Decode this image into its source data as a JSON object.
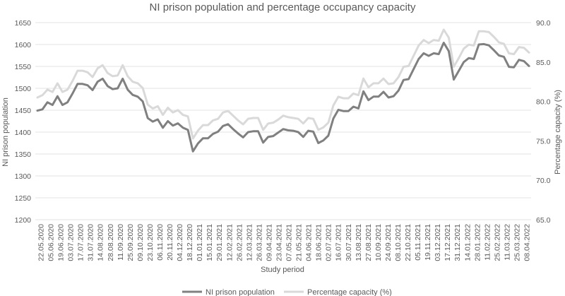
{
  "chart_data": {
    "type": "line",
    "title": "NI prison population and percentage occupancy capacity",
    "xlabel": "Study period",
    "ylabel": "NI prison population",
    "y2label": "Percentage capacity (%)",
    "ylim": [
      1200,
      1650
    ],
    "yticks": [
      "1650",
      "1600",
      "1550",
      "1500",
      "1450",
      "1400",
      "1350",
      "1300",
      "1250",
      "1200"
    ],
    "y2lim": [
      65.0,
      90.0
    ],
    "y2ticks": [
      "90.0",
      "85.0",
      "80.0",
      "75.0",
      "70.0",
      "65.0"
    ],
    "xtick_labels": [
      "22.05.2020",
      "05.06.2020",
      "19.06.2020",
      "03.07.2020",
      "17.07.2020",
      "31.07.2020",
      "14.08.2020",
      "28.08.2020",
      "11.09.2020",
      "25.09.2020",
      "09.10.2020",
      "23.10.2020",
      "06.11.2020",
      "20.11.2020",
      "04.12.2020",
      "18.12.2020",
      "01.01.2021",
      "15.01.2021",
      "29.01.2021",
      "12.02.2021",
      "26.02.2021",
      "12.03.2021",
      "26.03.2021",
      "09.04.2021",
      "23.04.2021",
      "07.05.2021",
      "21.05.2021",
      "04.06.2021",
      "18.06.2021",
      "02.07.2021",
      "16.07.2021",
      "30.07.2021",
      "13.08.2021",
      "27.08.2021",
      "10.09.2021",
      "24.09.2021",
      "08.10.2021",
      "22.10.2021",
      "05.11.2021",
      "19.11.2021",
      "03.12.2021",
      "17.12.2021",
      "31.12.2021",
      "14.01.2022",
      "28.01.2022",
      "11.02.2022",
      "25.02.2022",
      "11.03.2022",
      "25.03.2022",
      "08.04.2022"
    ],
    "series": [
      {
        "name": "NI prison population",
        "axis": "left",
        "color": "#808080",
        "values": [
          1449,
          1452,
          1468,
          1462,
          1482,
          1462,
          1468,
          1488,
          1510,
          1510,
          1507,
          1496,
          1515,
          1522,
          1505,
          1498,
          1500,
          1522,
          1497,
          1485,
          1481,
          1470,
          1432,
          1424,
          1429,
          1410,
          1425,
          1415,
          1420,
          1410,
          1405,
          1356,
          1374,
          1386,
          1386,
          1396,
          1401,
          1414,
          1418,
          1407,
          1397,
          1388,
          1400,
          1402,
          1402,
          1376,
          1389,
          1391,
          1399,
          1407,
          1404,
          1403,
          1400,
          1389,
          1403,
          1401,
          1375,
          1381,
          1392,
          1431,
          1451,
          1448,
          1448,
          1458,
          1454,
          1493,
          1473,
          1481,
          1481,
          1492,
          1479,
          1482,
          1495,
          1519,
          1521,
          1544,
          1567,
          1580,
          1574,
          1580,
          1578,
          1604,
          1585,
          1520,
          1540,
          1560,
          1569,
          1567,
          1600,
          1601,
          1598,
          1587,
          1575,
          1572,
          1549,
          1548,
          1565,
          1562,
          1551
        ]
      },
      {
        "name": "Percentage capacity (%)",
        "axis": "right",
        "color": "#d9d9d9",
        "values": [
          80.5,
          80.8,
          81.5,
          81.2,
          82.3,
          81.2,
          81.5,
          82.6,
          83.9,
          83.9,
          83.7,
          83.1,
          84.2,
          84.6,
          83.6,
          83.2,
          83.3,
          84.6,
          83.2,
          82.5,
          82.3,
          81.7,
          79.6,
          79.1,
          79.4,
          78.3,
          79.2,
          78.6,
          78.9,
          78.3,
          78.1,
          75.3,
          76.3,
          77.0,
          77.0,
          77.6,
          77.8,
          78.6,
          78.8,
          78.2,
          77.6,
          77.1,
          77.8,
          77.9,
          77.9,
          76.4,
          77.2,
          77.3,
          77.7,
          78.2,
          78.0,
          77.9,
          77.8,
          77.2,
          77.9,
          77.8,
          76.4,
          76.7,
          77.3,
          79.5,
          80.6,
          80.4,
          80.4,
          81.0,
          80.8,
          82.9,
          81.8,
          82.3,
          82.3,
          82.9,
          82.2,
          82.3,
          83.1,
          84.4,
          84.5,
          85.8,
          87.1,
          87.8,
          87.4,
          87.8,
          87.7,
          89.1,
          88.1,
          84.4,
          85.5,
          86.7,
          87.2,
          87.1,
          88.9,
          88.9,
          88.8,
          88.2,
          87.5,
          87.3,
          86.1,
          86.0,
          86.9,
          86.8,
          86.2
        ]
      }
    ],
    "legend_position": "bottom-center"
  }
}
